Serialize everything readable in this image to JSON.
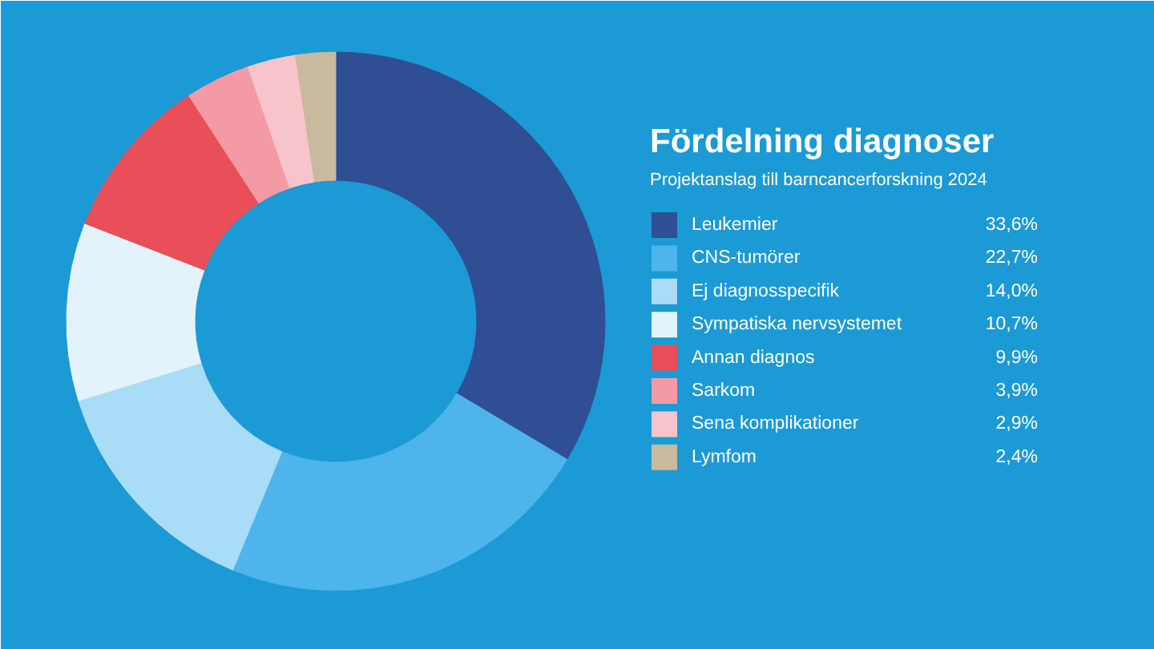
{
  "chart_data": {
    "type": "donut",
    "title": "Fördelning diagnoser",
    "subtitle": "Projektanslag till barncancerforskning 2024",
    "categories": [
      "Leukemier",
      "CNS-tumörer",
      "Ej diagnosspecifik",
      "Sympatiska nervsystemet",
      "Annan diagnos",
      "Sarkom",
      "Sena komplikationer",
      "Lymfom"
    ],
    "values": [
      33.6,
      22.7,
      14.0,
      10.7,
      9.9,
      3.9,
      2.9,
      2.4
    ],
    "value_labels": [
      "33,6%",
      "22,7%",
      "14,0%",
      "10,7%",
      "9,9%",
      "3,9%",
      "2,9%",
      "2,4%"
    ],
    "colors": [
      "#2f4e93",
      "#4db5ec",
      "#a9dcf6",
      "#e3f3fc",
      "#e84f58",
      "#f39aa4",
      "#f8c4cb",
      "#c9b99e"
    ],
    "legend": "right"
  }
}
